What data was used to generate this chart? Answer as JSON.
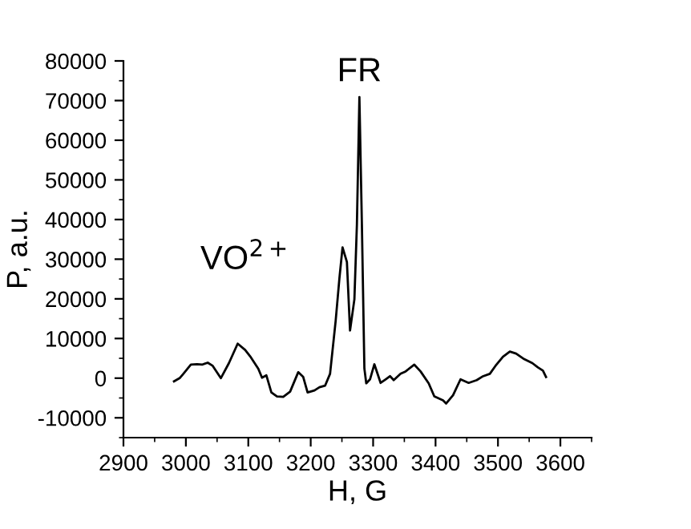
{
  "chart_data": {
    "type": "line",
    "xlabel": "H, G",
    "ylabel": "P, a.u.",
    "x": [
      2981,
      2990,
      2996,
      3008,
      3018,
      3026,
      3035,
      3043,
      3056,
      3069,
      3083,
      3095,
      3103,
      3116,
      3122,
      3129,
      3137,
      3146,
      3156,
      3167,
      3180,
      3188,
      3195,
      3206,
      3214,
      3223,
      3231,
      3240,
      3246,
      3251,
      3258,
      3263,
      3270,
      3274,
      3278,
      3282,
      3286,
      3289,
      3295,
      3302,
      3312,
      3320,
      3327,
      3333,
      3344,
      3352,
      3366,
      3376,
      3389,
      3398,
      3412,
      3417,
      3428,
      3440,
      3453,
      3466,
      3475,
      3487,
      3496,
      3508,
      3519,
      3529,
      3542,
      3555,
      3564,
      3572,
      3577
    ],
    "series": [
      {
        "color": "#000000",
        "values": [
          -800,
          0,
          1100,
          3400,
          3500,
          3400,
          3900,
          3100,
          0,
          3800,
          8700,
          7100,
          5500,
          2400,
          100,
          700,
          -3600,
          -4600,
          -4700,
          -3400,
          1500,
          300,
          -3600,
          -3100,
          -2300,
          -1900,
          1100,
          14500,
          25200,
          33000,
          29300,
          12000,
          19900,
          38700,
          70900,
          38700,
          2400,
          -1300,
          -300,
          3500,
          -1200,
          -300,
          500,
          -500,
          1100,
          1700,
          3400,
          1700,
          -1300,
          -4600,
          -5600,
          -6400,
          -4300,
          -300,
          -1200,
          -500,
          400,
          1100,
          3100,
          5400,
          6700,
          6200,
          4800,
          3800,
          2700,
          1900,
          300
        ]
      }
    ],
    "xlim": [
      2900,
      3650
    ],
    "ylim": [
      -15000,
      80000
    ],
    "xticks": [
      2900,
      3000,
      3100,
      3200,
      3300,
      3400,
      3500,
      3600
    ],
    "yticks": [
      -10000,
      0,
      10000,
      20000,
      30000,
      40000,
      50000,
      60000,
      70000,
      80000
    ],
    "grid": false,
    "legend": false,
    "marker": "none",
    "line_style": "solid",
    "annotations": [
      {
        "text": "FR",
        "x": 3278,
        "y": 70900
      },
      {
        "text": "VO$^{2+}$",
        "x": 3251,
        "y": 33000
      }
    ]
  }
}
